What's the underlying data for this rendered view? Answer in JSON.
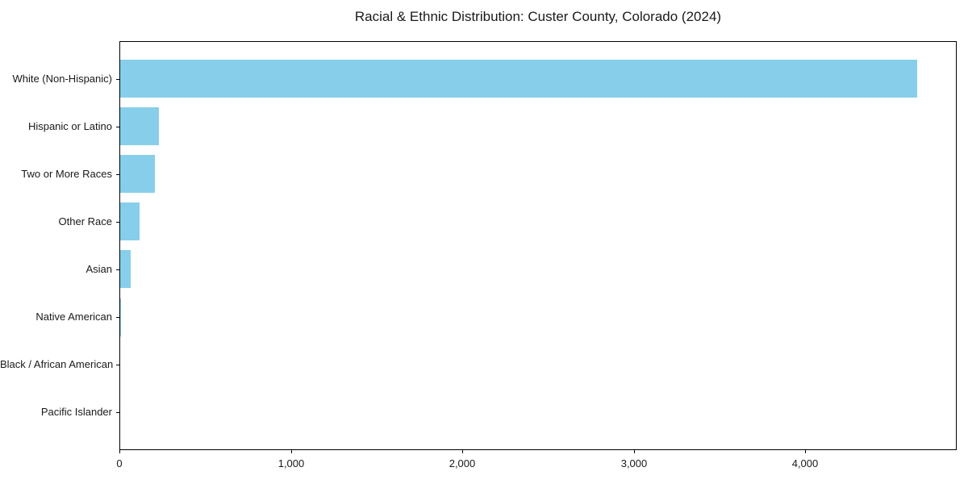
{
  "chart_data": {
    "type": "bar",
    "orientation": "horizontal",
    "title": "Racial & Ethnic Distribution: Custer County, Colorado (2024)",
    "xlabel": "",
    "ylabel": "",
    "categories": [
      "White (Non-Hispanic)",
      "Hispanic or Latino",
      "Two or More Races",
      "Other Race",
      "Asian",
      "Native American",
      "Black / African American",
      "Pacific Islander"
    ],
    "values": [
      4650,
      224,
      201,
      113,
      61,
      7,
      0,
      0
    ],
    "xlim": [
      0,
      4884
    ],
    "x_ticks": [
      0,
      1000,
      2000,
      3000,
      4000
    ],
    "x_tick_labels": [
      "0",
      "1,000",
      "2,000",
      "3,000",
      "4,000"
    ],
    "bar_color": "#87CEEB",
    "axis_color": "#000000",
    "text_color": "#1a1a1a",
    "grid": false,
    "legend": null
  }
}
